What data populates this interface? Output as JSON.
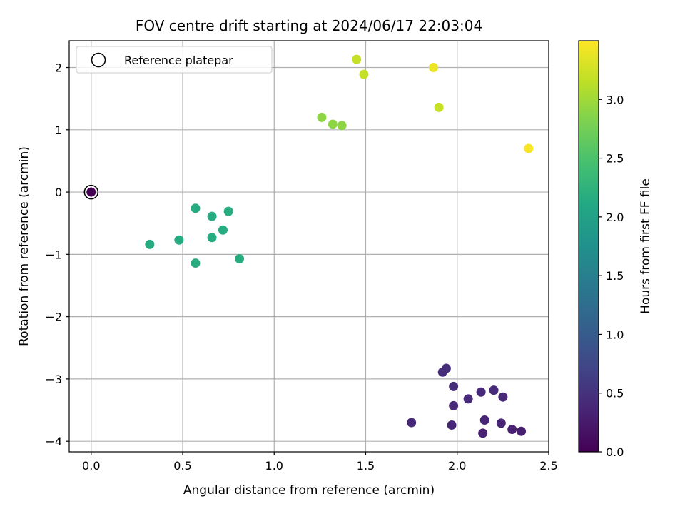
{
  "chart_data": {
    "type": "scatter",
    "title": "FOV centre drift starting at 2024/06/17 22:03:04",
    "xlabel": "Angular distance from reference (arcmin)",
    "ylabel": "Rotation from reference (arcmin)",
    "xlim": [
      -0.12,
      2.5
    ],
    "ylim": [
      -4.17,
      2.43
    ],
    "xticks": [
      0.0,
      0.5,
      1.0,
      1.5,
      2.0,
      2.5
    ],
    "xtick_labels": [
      "0.0",
      "0.5",
      "1.0",
      "1.5",
      "2.0",
      "2.5"
    ],
    "yticks": [
      -4,
      -3,
      -2,
      -1,
      0,
      1,
      2
    ],
    "ytick_labels": [
      "−4",
      "−3",
      "−2",
      "−1",
      "0",
      "1",
      "2"
    ],
    "grid": true,
    "legend_position": "top-left",
    "legend": [
      {
        "label": "Reference platepar",
        "marker": "open-circle"
      }
    ],
    "reference_point": {
      "x": 0.0,
      "y": 0.0
    },
    "colorbar": {
      "label": "Hours from first FF file",
      "colormap": "viridis",
      "range": [
        0.0,
        3.5
      ],
      "ticks": [
        0.0,
        0.5,
        1.0,
        1.5,
        2.0,
        2.5,
        3.0
      ],
      "tick_labels": [
        "0.0",
        "0.5",
        "1.0",
        "1.5",
        "2.0",
        "2.5",
        "3.0"
      ]
    },
    "points": [
      {
        "x": 0.0,
        "y": 0.0,
        "c": 0.0
      },
      {
        "x": 1.94,
        "y": -2.83,
        "c": 0.45
      },
      {
        "x": 1.92,
        "y": -2.89,
        "c": 0.45
      },
      {
        "x": 1.98,
        "y": -3.12,
        "c": 0.45
      },
      {
        "x": 2.06,
        "y": -3.32,
        "c": 0.42
      },
      {
        "x": 2.13,
        "y": -3.21,
        "c": 0.42
      },
      {
        "x": 2.2,
        "y": -3.18,
        "c": 0.42
      },
      {
        "x": 2.25,
        "y": -3.29,
        "c": 0.4
      },
      {
        "x": 1.98,
        "y": -3.43,
        "c": 0.4
      },
      {
        "x": 1.75,
        "y": -3.7,
        "c": 0.38
      },
      {
        "x": 1.97,
        "y": -3.74,
        "c": 0.38
      },
      {
        "x": 2.15,
        "y": -3.66,
        "c": 0.36
      },
      {
        "x": 2.24,
        "y": -3.71,
        "c": 0.35
      },
      {
        "x": 2.14,
        "y": -3.87,
        "c": 0.32
      },
      {
        "x": 2.3,
        "y": -3.81,
        "c": 0.32
      },
      {
        "x": 2.35,
        "y": -3.84,
        "c": 0.3
      },
      {
        "x": 0.57,
        "y": -0.26,
        "c": 2.15
      },
      {
        "x": 0.66,
        "y": -0.39,
        "c": 2.15
      },
      {
        "x": 0.75,
        "y": -0.31,
        "c": 2.15
      },
      {
        "x": 0.32,
        "y": -0.84,
        "c": 2.15
      },
      {
        "x": 0.48,
        "y": -0.77,
        "c": 2.15
      },
      {
        "x": 0.66,
        "y": -0.73,
        "c": 2.15
      },
      {
        "x": 0.72,
        "y": -0.61,
        "c": 2.15
      },
      {
        "x": 0.81,
        "y": -1.07,
        "c": 2.15
      },
      {
        "x": 0.57,
        "y": -1.14,
        "c": 2.15
      },
      {
        "x": 1.26,
        "y": 1.2,
        "c": 2.9
      },
      {
        "x": 1.32,
        "y": 1.09,
        "c": 2.9
      },
      {
        "x": 1.37,
        "y": 1.07,
        "c": 2.9
      },
      {
        "x": 1.45,
        "y": 2.13,
        "c": 3.2
      },
      {
        "x": 1.49,
        "y": 1.89,
        "c": 3.2
      },
      {
        "x": 1.9,
        "y": 1.36,
        "c": 3.2
      },
      {
        "x": 1.87,
        "y": 2.0,
        "c": 3.4
      },
      {
        "x": 2.39,
        "y": 0.7,
        "c": 3.47
      }
    ]
  }
}
